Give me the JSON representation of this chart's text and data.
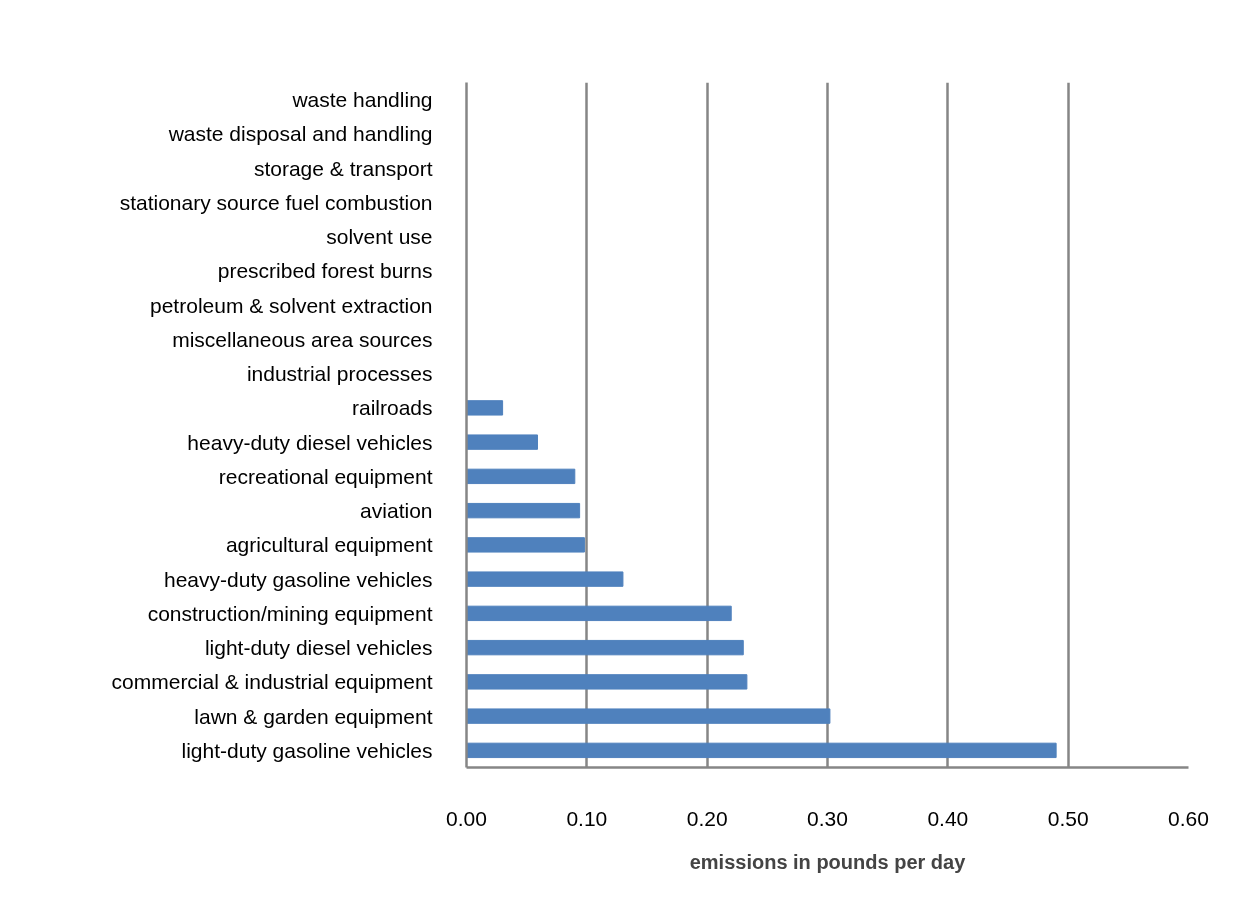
{
  "chart_data": {
    "type": "bar",
    "orientation": "horizontal",
    "xlabel": "emissions in pounds per day",
    "categories": [
      "waste handling",
      "waste disposal and handling",
      "storage & transport",
      "stationary source fuel combustion",
      "solvent use",
      "prescribed forest burns",
      "petroleum & solvent extraction",
      "miscellaneous area sources",
      "industrial processes",
      "railroads",
      "heavy-duty diesel vehicles",
      "recreational equipment",
      "aviation",
      "agricultural equipment",
      "heavy-duty gasoline vehicles",
      "construction/mining equipment",
      "light-duty diesel vehicles",
      "commercial & industrial equipment",
      "lawn & garden equipment",
      "light-duty gasoline vehicles"
    ],
    "values": [
      0,
      0,
      0,
      0,
      0,
      0,
      0,
      0,
      0,
      0.03,
      0.059,
      0.09,
      0.094,
      0.098,
      0.13,
      0.22,
      0.23,
      0.233,
      0.302,
      0.49
    ],
    "color": "#4f81bd",
    "xlim": [
      0,
      0.6
    ],
    "xticks": [
      {
        "value": 0,
        "label": "0.00"
      },
      {
        "value": 0.1,
        "label": "0.10"
      },
      {
        "value": 0.2,
        "label": "0.20"
      },
      {
        "value": 0.3,
        "label": "0.30"
      },
      {
        "value": 0.4,
        "label": "0.40"
      },
      {
        "value": 0.5,
        "label": "0.50"
      },
      {
        "value": 0.6,
        "label": "0.60"
      }
    ],
    "grid": "x"
  }
}
